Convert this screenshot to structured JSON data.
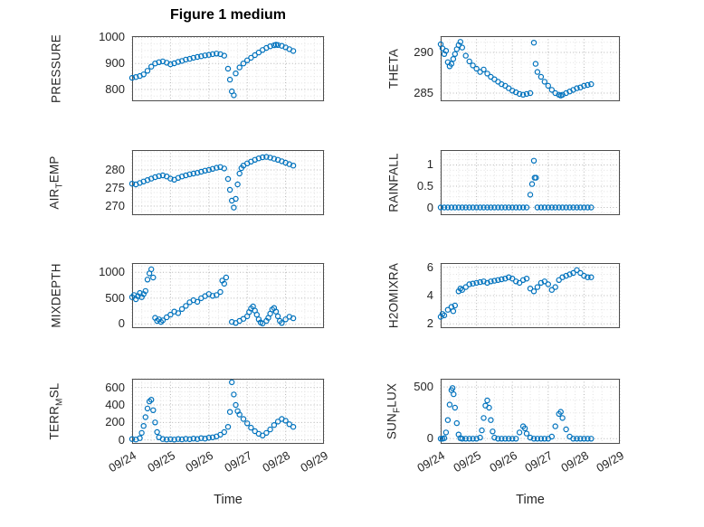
{
  "title": "Figure 1 medium",
  "xlabel": "Time",
  "colors": {
    "marker": "#0072BD",
    "axis_text": "#262626",
    "grid_major": "#b5b5b5",
    "grid_minor": "#e2e2e2",
    "box_border": "#4d4d4d",
    "title_text": "#000000"
  },
  "xlim": [
    0,
    5
  ],
  "xticks": {
    "labels": [
      "09/24",
      "09/25",
      "09/26",
      "09/27",
      "09/28",
      "09/29"
    ],
    "positions": [
      0,
      1,
      2,
      3,
      4,
      5
    ]
  },
  "chart_data": [
    {
      "type": "scatter",
      "name": "PRESSURE",
      "ylabel_parts": [
        {
          "t": "PRESSURE",
          "sub": false
        }
      ],
      "yticks": [
        800,
        900,
        1000
      ],
      "ylim": [
        755,
        1005
      ],
      "label_offset": 84,
      "show_xticks": false,
      "x": [
        0,
        0.1,
        0.2,
        0.3,
        0.4,
        0.5,
        0.6,
        0.7,
        0.8,
        0.9,
        1,
        1.1,
        1.2,
        1.3,
        1.4,
        1.5,
        1.6,
        1.7,
        1.8,
        1.9,
        2,
        2.1,
        2.2,
        2.3,
        2.4,
        2.5,
        2.55,
        2.6,
        2.65,
        2.7,
        2.8,
        2.9,
        3,
        3.1,
        3.2,
        3.3,
        3.4,
        3.5,
        3.6,
        3.7,
        3.75,
        3.8,
        3.9,
        4,
        4.1,
        4.2
      ],
      "y": [
        845,
        848,
        852,
        858,
        872,
        888,
        900,
        905,
        908,
        903,
        897,
        901,
        906,
        910,
        915,
        918,
        922,
        925,
        928,
        931,
        933,
        936,
        938,
        936,
        930,
        880,
        838,
        793,
        778,
        862,
        885,
        900,
        912,
        922,
        932,
        942,
        952,
        960,
        966,
        970,
        972,
        971,
        968,
        962,
        955,
        948
      ]
    },
    {
      "type": "scatter",
      "name": "THETA",
      "ylabel_parts": [
        {
          "t": "THETA",
          "sub": false
        }
      ],
      "yticks": [
        285,
        290
      ],
      "ylim": [
        284,
        292
      ],
      "label_offset": 52,
      "show_xticks": false,
      "x": [
        0,
        0.05,
        0.1,
        0.15,
        0.2,
        0.25,
        0.3,
        0.35,
        0.4,
        0.45,
        0.5,
        0.55,
        0.6,
        0.7,
        0.8,
        0.9,
        1,
        1.1,
        1.2,
        1.3,
        1.4,
        1.5,
        1.6,
        1.7,
        1.8,
        1.9,
        2,
        2.1,
        2.2,
        2.3,
        2.4,
        2.5,
        2.6,
        2.65,
        2.7,
        2.8,
        2.9,
        3,
        3.1,
        3.2,
        3.3,
        3.35,
        3.4,
        3.5,
        3.6,
        3.7,
        3.8,
        3.9,
        4,
        4.1,
        4.2
      ],
      "y": [
        291,
        290.5,
        289.8,
        290.2,
        288.8,
        288.3,
        288.6,
        289.2,
        289.8,
        290.4,
        290.9,
        291.3,
        290.6,
        289.6,
        288.9,
        288.4,
        288,
        287.6,
        287.9,
        287.4,
        287,
        286.7,
        286.4,
        286.1,
        285.9,
        285.6,
        285.3,
        285.1,
        284.9,
        284.8,
        284.9,
        285,
        291.2,
        288.6,
        287.6,
        287,
        286.4,
        285.9,
        285.4,
        285,
        284.8,
        284.7,
        284.8,
        285,
        285.2,
        285.4,
        285.6,
        285.7,
        285.9,
        286,
        286.1
      ]
    },
    {
      "type": "scatter",
      "name": "AIR_TEMP",
      "ylabel_parts": [
        {
          "t": "AIR",
          "sub": false
        },
        {
          "t": "T",
          "sub": true
        },
        {
          "t": "EMP",
          "sub": false
        }
      ],
      "yticks": [
        270,
        275,
        280
      ],
      "ylim": [
        267.5,
        285.5
      ],
      "label_offset": 84,
      "show_xticks": false,
      "x": [
        0,
        0.1,
        0.2,
        0.3,
        0.4,
        0.5,
        0.6,
        0.7,
        0.8,
        0.9,
        1,
        1.1,
        1.2,
        1.3,
        1.4,
        1.5,
        1.6,
        1.7,
        1.8,
        1.9,
        2,
        2.1,
        2.2,
        2.3,
        2.4,
        2.5,
        2.55,
        2.6,
        2.65,
        2.7,
        2.75,
        2.8,
        2.85,
        2.9,
        3,
        3.1,
        3.2,
        3.3,
        3.4,
        3.5,
        3.6,
        3.7,
        3.8,
        3.9,
        4,
        4.1,
        4.2
      ],
      "y": [
        276.2,
        276,
        276.4,
        276.8,
        277.2,
        277.6,
        278,
        278.3,
        278.5,
        278.2,
        277.6,
        277.3,
        277.8,
        278.2,
        278.5,
        278.8,
        279,
        279.2,
        279.5,
        279.8,
        280,
        280.3,
        280.6,
        280.8,
        280.4,
        277.5,
        274.5,
        271.5,
        269.6,
        272,
        276,
        279,
        280.5,
        281.2,
        281.8,
        282.3,
        282.8,
        283.2,
        283.5,
        283.6,
        283.4,
        283.1,
        282.8,
        282.4,
        282,
        281.6,
        281.2
      ]
    },
    {
      "type": "scatter",
      "name": "RAINFALL",
      "ylabel_parts": [
        {
          "t": "RAINFALL",
          "sub": false
        }
      ],
      "yticks": [
        0,
        0.5,
        1
      ],
      "ylim": [
        -0.18,
        1.35
      ],
      "label_offset": 52,
      "show_xticks": false,
      "x": [
        0,
        0.1,
        0.2,
        0.3,
        0.4,
        0.5,
        0.6,
        0.7,
        0.8,
        0.9,
        1,
        1.1,
        1.2,
        1.3,
        1.4,
        1.5,
        1.6,
        1.7,
        1.8,
        1.9,
        2,
        2.1,
        2.2,
        2.3,
        2.4,
        2.5,
        2.55,
        2.6,
        2.62,
        2.66,
        2.7,
        2.8,
        2.9,
        3,
        3.1,
        3.2,
        3.3,
        3.4,
        3.5,
        3.6,
        3.7,
        3.8,
        3.9,
        4,
        4.1,
        4.2
      ],
      "y": [
        0,
        0,
        0,
        0,
        0,
        0,
        0,
        0,
        0,
        0,
        0,
        0,
        0,
        0,
        0,
        0,
        0,
        0,
        0,
        0,
        0,
        0,
        0,
        0,
        0,
        0.3,
        0.55,
        1.1,
        0.7,
        0.7,
        0,
        0,
        0,
        0,
        0,
        0,
        0,
        0,
        0,
        0,
        0,
        0,
        0,
        0,
        0,
        0
      ]
    },
    {
      "type": "scatter",
      "name": "MIXDEPTH",
      "ylabel_parts": [
        {
          "t": "MIXDEPTH",
          "sub": false
        }
      ],
      "yticks": [
        0,
        500,
        1000
      ],
      "ylim": [
        -80,
        1180
      ],
      "label_offset": 84,
      "show_xticks": false,
      "x": [
        0,
        0.05,
        0.1,
        0.15,
        0.2,
        0.25,
        0.3,
        0.35,
        0.4,
        0.45,
        0.5,
        0.55,
        0.6,
        0.65,
        0.7,
        0.75,
        0.8,
        0.9,
        1,
        1.1,
        1.2,
        1.3,
        1.4,
        1.5,
        1.6,
        1.7,
        1.8,
        1.9,
        2,
        2.1,
        2.2,
        2.3,
        2.35,
        2.4,
        2.45,
        2.6,
        2.7,
        2.8,
        2.9,
        3,
        3.05,
        3.1,
        3.15,
        3.2,
        3.25,
        3.3,
        3.35,
        3.4,
        3.5,
        3.55,
        3.6,
        3.65,
        3.7,
        3.75,
        3.8,
        3.85,
        3.9,
        4,
        4.1,
        4.2
      ],
      "y": [
        520,
        560,
        480,
        540,
        600,
        520,
        580,
        640,
        860,
        980,
        1060,
        900,
        120,
        60,
        90,
        40,
        70,
        130,
        180,
        240,
        210,
        290,
        350,
        420,
        460,
        430,
        500,
        540,
        580,
        545,
        560,
        620,
        840,
        780,
        900,
        40,
        20,
        60,
        100,
        150,
        230,
        300,
        340,
        260,
        180,
        90,
        30,
        10,
        60,
        120,
        200,
        280,
        310,
        240,
        150,
        60,
        20,
        90,
        140,
        110
      ]
    },
    {
      "type": "scatter",
      "name": "H2OMIXRA",
      "ylabel_parts": [
        {
          "t": "H2OMIXRA",
          "sub": false
        }
      ],
      "yticks": [
        2,
        4,
        6
      ],
      "ylim": [
        1.7,
        6.3
      ],
      "label_offset": 52,
      "show_xticks": false,
      "x": [
        0,
        0.05,
        0.1,
        0.2,
        0.3,
        0.35,
        0.4,
        0.5,
        0.55,
        0.6,
        0.7,
        0.8,
        0.9,
        1,
        1.1,
        1.2,
        1.3,
        1.4,
        1.5,
        1.6,
        1.7,
        1.8,
        1.9,
        2,
        2.1,
        2.2,
        2.3,
        2.4,
        2.5,
        2.6,
        2.7,
        2.8,
        2.9,
        3,
        3.1,
        3.2,
        3.3,
        3.4,
        3.5,
        3.6,
        3.7,
        3.8,
        3.9,
        4,
        4.1,
        4.2
      ],
      "y": [
        2.5,
        2.7,
        2.6,
        3,
        3.2,
        2.9,
        3.3,
        4.3,
        4.5,
        4.4,
        4.6,
        4.8,
        4.85,
        4.9,
        4.95,
        5,
        4.9,
        5,
        5.05,
        5.1,
        5.15,
        5.2,
        5.3,
        5.2,
        5,
        4.9,
        5.1,
        5.2,
        4.5,
        4.3,
        4.6,
        4.9,
        5,
        4.8,
        4.4,
        4.6,
        5.1,
        5.3,
        5.4,
        5.5,
        5.6,
        5.8,
        5.6,
        5.4,
        5.3,
        5.3
      ]
    },
    {
      "type": "scatter",
      "name": "TERR_MSL",
      "ylabel_parts": [
        {
          "t": "TERR",
          "sub": false
        },
        {
          "t": "M",
          "sub": true
        },
        {
          "t": "SL",
          "sub": false
        }
      ],
      "yticks": [
        0,
        200,
        400,
        600
      ],
      "ylim": [
        -45,
        700
      ],
      "label_offset": 84,
      "show_xticks": true,
      "x": [
        0,
        0.1,
        0.2,
        0.25,
        0.3,
        0.35,
        0.4,
        0.45,
        0.5,
        0.55,
        0.6,
        0.65,
        0.7,
        0.8,
        0.9,
        1,
        1.1,
        1.2,
        1.3,
        1.4,
        1.5,
        1.6,
        1.7,
        1.8,
        1.9,
        2,
        2.1,
        2.2,
        2.3,
        2.4,
        2.5,
        2.55,
        2.6,
        2.65,
        2.7,
        2.75,
        2.8,
        2.9,
        3,
        3.1,
        3.2,
        3.3,
        3.4,
        3.5,
        3.6,
        3.7,
        3.8,
        3.9,
        4,
        4.1,
        4.2
      ],
      "y": [
        10,
        5,
        20,
        80,
        160,
        260,
        360,
        440,
        460,
        340,
        200,
        90,
        30,
        10,
        5,
        8,
        4,
        10,
        6,
        12,
        8,
        15,
        10,
        20,
        15,
        25,
        30,
        40,
        60,
        90,
        150,
        320,
        660,
        520,
        400,
        330,
        290,
        240,
        190,
        140,
        100,
        70,
        50,
        80,
        120,
        170,
        210,
        240,
        220,
        180,
        150
      ]
    },
    {
      "type": "scatter",
      "name": "SUN_FLUX",
      "ylabel_parts": [
        {
          "t": "SUN",
          "sub": false
        },
        {
          "t": "F",
          "sub": true
        },
        {
          "t": "LUX",
          "sub": false
        }
      ],
      "yticks": [
        0,
        500
      ],
      "ylim": [
        -50,
        580
      ],
      "label_offset": 52,
      "show_xticks": true,
      "x": [
        0,
        0.05,
        0.1,
        0.15,
        0.2,
        0.25,
        0.3,
        0.33,
        0.36,
        0.4,
        0.45,
        0.5,
        0.55,
        0.6,
        0.7,
        0.8,
        0.9,
        1,
        1.1,
        1.15,
        1.2,
        1.25,
        1.3,
        1.35,
        1.4,
        1.45,
        1.5,
        1.6,
        1.7,
        1.8,
        1.9,
        2,
        2.1,
        2.2,
        2.3,
        2.35,
        2.4,
        2.5,
        2.6,
        2.7,
        2.8,
        2.9,
        3,
        3.1,
        3.2,
        3.3,
        3.35,
        3.4,
        3.5,
        3.6,
        3.7,
        3.8,
        3.9,
        4,
        4.1,
        4.2
      ],
      "y": [
        0,
        0,
        5,
        60,
        180,
        330,
        470,
        490,
        430,
        300,
        150,
        40,
        5,
        0,
        0,
        0,
        0,
        0,
        10,
        80,
        200,
        320,
        370,
        300,
        180,
        70,
        10,
        0,
        0,
        0,
        0,
        0,
        0,
        60,
        120,
        100,
        50,
        10,
        0,
        0,
        0,
        0,
        0,
        20,
        120,
        240,
        260,
        200,
        90,
        20,
        0,
        0,
        0,
        0,
        0,
        0
      ]
    }
  ]
}
